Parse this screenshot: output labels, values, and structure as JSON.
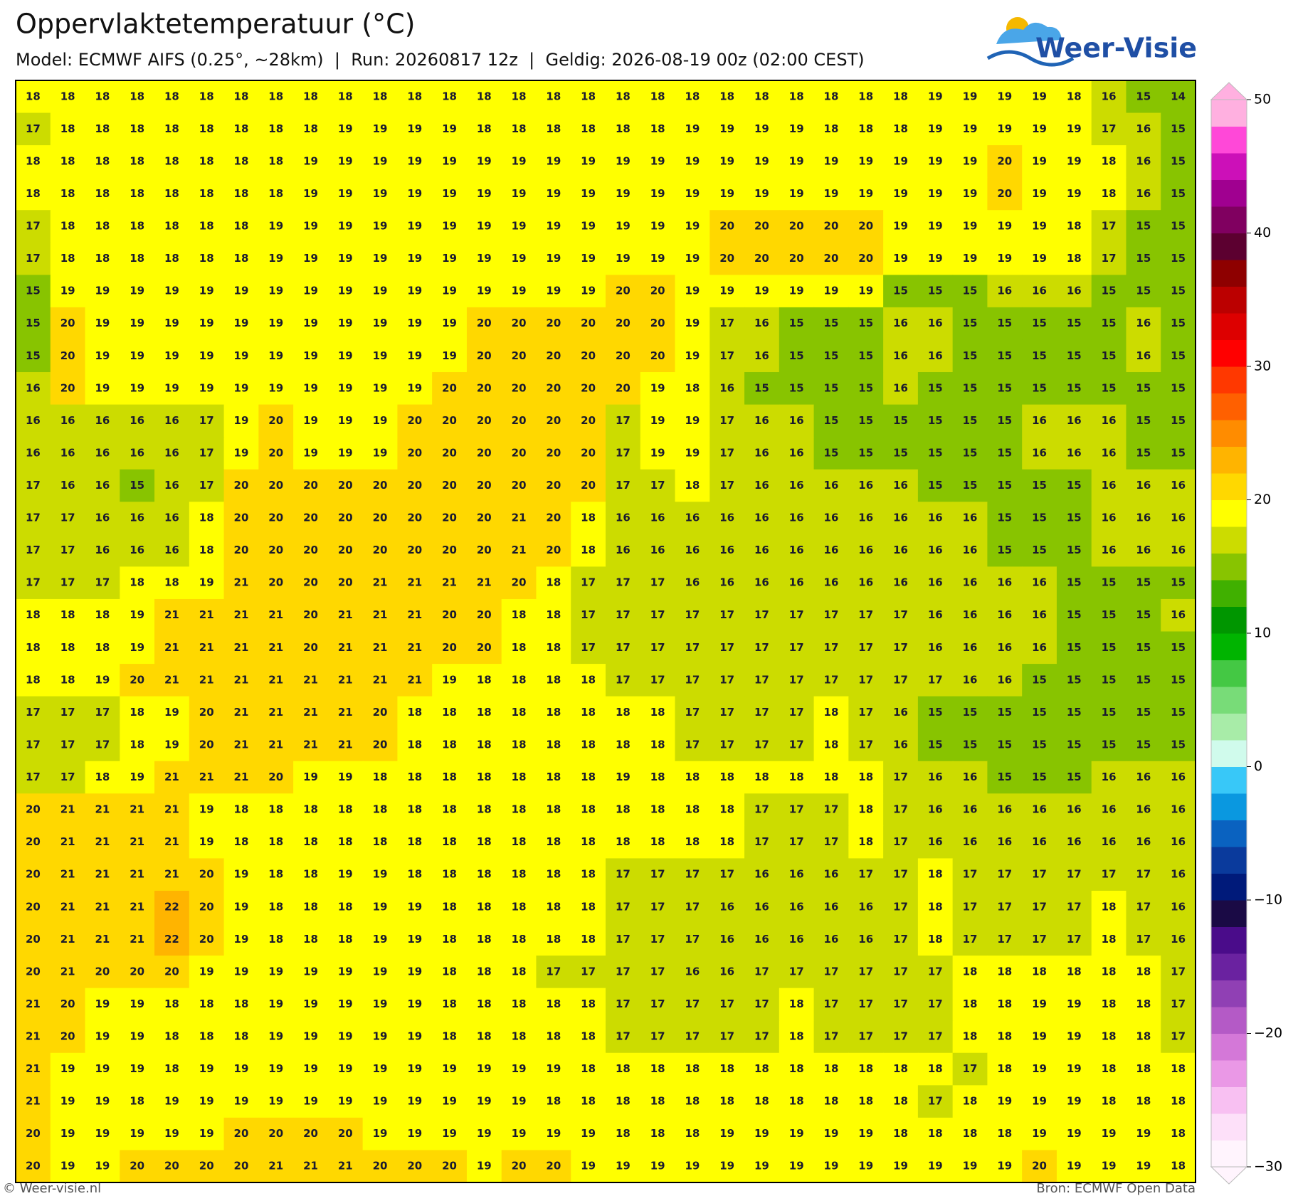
{
  "header": {
    "title": "Oppervlaktetemperatuur (°C)",
    "subtitle": "Model: ECMWF AIFS (0.25°, ~28km)  |  Run: 20260817 12z  |  Geldig: 2026-08-19 00z (02:00 CEST)",
    "logo": "Weer-Visie"
  },
  "map": {
    "values": [
      [
        18,
        18,
        18,
        18,
        18,
        18,
        18,
        18,
        18,
        18,
        18,
        18,
        18,
        18,
        18,
        18,
        18,
        18,
        18,
        18,
        18,
        18,
        18,
        18,
        18,
        18,
        19,
        19,
        19,
        19,
        18,
        16,
        15,
        14
      ],
      [
        17,
        18,
        18,
        18,
        18,
        18,
        18,
        18,
        18,
        19,
        19,
        19,
        19,
        18,
        18,
        18,
        18,
        18,
        18,
        19,
        19,
        19,
        19,
        18,
        18,
        18,
        19,
        19,
        19,
        19,
        19,
        17,
        16,
        15
      ],
      [
        18,
        18,
        18,
        18,
        18,
        18,
        18,
        18,
        19,
        19,
        19,
        19,
        19,
        19,
        19,
        19,
        19,
        19,
        19,
        19,
        19,
        19,
        19,
        19,
        19,
        19,
        19,
        19,
        20,
        19,
        19,
        18,
        16,
        15
      ],
      [
        18,
        18,
        18,
        18,
        18,
        18,
        18,
        18,
        19,
        19,
        19,
        19,
        19,
        19,
        19,
        19,
        19,
        19,
        19,
        19,
        19,
        19,
        19,
        19,
        19,
        19,
        19,
        19,
        20,
        19,
        19,
        18,
        16,
        15
      ],
      [
        17,
        18,
        18,
        18,
        18,
        18,
        18,
        19,
        19,
        19,
        19,
        19,
        19,
        19,
        19,
        19,
        19,
        19,
        19,
        19,
        20,
        20,
        20,
        20,
        20,
        19,
        19,
        19,
        19,
        19,
        18,
        17,
        15,
        15
      ],
      [
        17,
        18,
        18,
        18,
        18,
        18,
        18,
        19,
        19,
        19,
        19,
        19,
        19,
        19,
        19,
        19,
        19,
        19,
        19,
        19,
        20,
        20,
        20,
        20,
        20,
        19,
        19,
        19,
        19,
        19,
        18,
        17,
        15,
        15
      ],
      [
        15,
        19,
        19,
        19,
        19,
        19,
        19,
        19,
        19,
        19,
        19,
        19,
        19,
        19,
        19,
        19,
        19,
        20,
        20,
        19,
        19,
        19,
        19,
        19,
        19,
        15,
        15,
        15,
        16,
        16,
        16,
        15,
        15,
        15
      ],
      [
        15,
        20,
        19,
        19,
        19,
        19,
        19,
        19,
        19,
        19,
        19,
        19,
        19,
        20,
        20,
        20,
        20,
        20,
        20,
        19,
        17,
        16,
        15,
        15,
        15,
        16,
        16,
        15,
        15,
        15,
        15,
        15,
        16,
        15
      ],
      [
        15,
        20,
        19,
        19,
        19,
        19,
        19,
        19,
        19,
        19,
        19,
        19,
        19,
        20,
        20,
        20,
        20,
        20,
        20,
        19,
        17,
        16,
        15,
        15,
        15,
        16,
        16,
        15,
        15,
        15,
        15,
        15,
        16,
        15
      ],
      [
        16,
        20,
        19,
        19,
        19,
        19,
        19,
        19,
        19,
        19,
        19,
        19,
        20,
        20,
        20,
        20,
        20,
        20,
        19,
        18,
        16,
        15,
        15,
        15,
        15,
        16,
        15,
        15,
        15,
        15,
        15,
        15,
        15,
        15
      ],
      [
        16,
        16,
        16,
        16,
        16,
        17,
        19,
        20,
        19,
        19,
        19,
        20,
        20,
        20,
        20,
        20,
        20,
        17,
        19,
        19,
        17,
        16,
        16,
        15,
        15,
        15,
        15,
        15,
        15,
        16,
        16,
        16,
        15,
        15
      ],
      [
        16,
        16,
        16,
        16,
        16,
        17,
        19,
        20,
        19,
        19,
        19,
        20,
        20,
        20,
        20,
        20,
        20,
        17,
        19,
        19,
        17,
        16,
        16,
        15,
        15,
        15,
        15,
        15,
        15,
        16,
        16,
        16,
        15,
        15
      ],
      [
        17,
        16,
        16,
        15,
        16,
        17,
        20,
        20,
        20,
        20,
        20,
        20,
        20,
        20,
        20,
        20,
        20,
        17,
        17,
        18,
        17,
        16,
        16,
        16,
        16,
        16,
        15,
        15,
        15,
        15,
        15,
        16,
        16,
        16
      ],
      [
        17,
        17,
        16,
        16,
        16,
        18,
        20,
        20,
        20,
        20,
        20,
        20,
        20,
        20,
        21,
        20,
        18,
        16,
        16,
        16,
        16,
        16,
        16,
        16,
        16,
        16,
        16,
        16,
        15,
        15,
        15,
        16,
        16,
        16
      ],
      [
        17,
        17,
        16,
        16,
        16,
        18,
        20,
        20,
        20,
        20,
        20,
        20,
        20,
        20,
        21,
        20,
        18,
        16,
        16,
        16,
        16,
        16,
        16,
        16,
        16,
        16,
        16,
        16,
        15,
        15,
        15,
        16,
        16,
        16
      ],
      [
        17,
        17,
        17,
        18,
        18,
        19,
        21,
        20,
        20,
        20,
        21,
        21,
        21,
        21,
        20,
        18,
        17,
        17,
        17,
        16,
        16,
        16,
        16,
        16,
        16,
        16,
        16,
        16,
        16,
        16,
        15,
        15,
        15,
        15
      ],
      [
        18,
        18,
        18,
        19,
        21,
        21,
        21,
        21,
        20,
        21,
        21,
        21,
        20,
        20,
        18,
        18,
        17,
        17,
        17,
        17,
        17,
        17,
        17,
        17,
        17,
        17,
        16,
        16,
        16,
        16,
        15,
        15,
        15,
        16
      ],
      [
        18,
        18,
        18,
        19,
        21,
        21,
        21,
        21,
        20,
        21,
        21,
        21,
        20,
        20,
        18,
        18,
        17,
        17,
        17,
        17,
        17,
        17,
        17,
        17,
        17,
        17,
        16,
        16,
        16,
        16,
        15,
        15,
        15,
        15
      ],
      [
        18,
        18,
        19,
        20,
        21,
        21,
        21,
        21,
        21,
        21,
        21,
        21,
        19,
        18,
        18,
        18,
        18,
        17,
        17,
        17,
        17,
        17,
        17,
        17,
        17,
        17,
        17,
        16,
        16,
        15,
        15,
        15,
        15,
        15
      ],
      [
        17,
        17,
        17,
        18,
        19,
        20,
        21,
        21,
        21,
        21,
        20,
        18,
        18,
        18,
        18,
        18,
        18,
        18,
        18,
        17,
        17,
        17,
        17,
        18,
        17,
        16,
        15,
        15,
        15,
        15,
        15,
        15,
        15,
        15
      ],
      [
        17,
        17,
        17,
        18,
        19,
        20,
        21,
        21,
        21,
        21,
        20,
        18,
        18,
        18,
        18,
        18,
        18,
        18,
        18,
        17,
        17,
        17,
        17,
        18,
        17,
        16,
        15,
        15,
        15,
        15,
        15,
        15,
        15,
        15
      ],
      [
        17,
        17,
        18,
        19,
        21,
        21,
        21,
        20,
        19,
        19,
        18,
        18,
        18,
        18,
        18,
        18,
        18,
        19,
        18,
        18,
        18,
        18,
        18,
        18,
        18,
        17,
        16,
        16,
        15,
        15,
        15,
        16,
        16,
        16
      ],
      [
        20,
        21,
        21,
        21,
        21,
        19,
        18,
        18,
        18,
        18,
        18,
        18,
        18,
        18,
        18,
        18,
        18,
        18,
        18,
        18,
        18,
        17,
        17,
        17,
        18,
        17,
        16,
        16,
        16,
        16,
        16,
        16,
        16,
        16
      ],
      [
        20,
        21,
        21,
        21,
        21,
        19,
        18,
        18,
        18,
        18,
        18,
        18,
        18,
        18,
        18,
        18,
        18,
        18,
        18,
        18,
        18,
        17,
        17,
        17,
        18,
        17,
        16,
        16,
        16,
        16,
        16,
        16,
        16,
        16
      ],
      [
        20,
        21,
        21,
        21,
        21,
        20,
        19,
        18,
        18,
        19,
        19,
        18,
        18,
        18,
        18,
        18,
        18,
        17,
        17,
        17,
        17,
        16,
        16,
        16,
        17,
        17,
        18,
        17,
        17,
        17,
        17,
        17,
        17,
        16
      ],
      [
        20,
        21,
        21,
        21,
        22,
        20,
        19,
        18,
        18,
        18,
        19,
        19,
        18,
        18,
        18,
        18,
        18,
        17,
        17,
        17,
        16,
        16,
        16,
        16,
        16,
        17,
        18,
        17,
        17,
        17,
        17,
        18,
        17,
        16
      ],
      [
        20,
        21,
        21,
        21,
        22,
        20,
        19,
        18,
        18,
        18,
        19,
        19,
        18,
        18,
        18,
        18,
        18,
        17,
        17,
        17,
        16,
        16,
        16,
        16,
        16,
        17,
        18,
        17,
        17,
        17,
        17,
        18,
        17,
        16
      ],
      [
        20,
        21,
        20,
        20,
        20,
        19,
        19,
        19,
        19,
        19,
        19,
        19,
        18,
        18,
        18,
        17,
        17,
        17,
        17,
        16,
        16,
        17,
        17,
        17,
        17,
        17,
        17,
        18,
        18,
        18,
        18,
        18,
        18,
        17
      ],
      [
        21,
        20,
        19,
        19,
        18,
        18,
        18,
        19,
        19,
        19,
        19,
        19,
        18,
        18,
        18,
        18,
        18,
        17,
        17,
        17,
        17,
        17,
        18,
        17,
        17,
        17,
        17,
        18,
        18,
        19,
        19,
        18,
        18,
        17
      ],
      [
        21,
        20,
        19,
        19,
        18,
        18,
        18,
        19,
        19,
        19,
        19,
        19,
        18,
        18,
        18,
        18,
        18,
        17,
        17,
        17,
        17,
        17,
        18,
        17,
        17,
        17,
        17,
        18,
        18,
        19,
        19,
        18,
        18,
        17
      ],
      [
        21,
        19,
        19,
        19,
        18,
        19,
        19,
        19,
        19,
        19,
        19,
        19,
        19,
        19,
        19,
        19,
        18,
        18,
        18,
        18,
        18,
        18,
        18,
        18,
        18,
        18,
        18,
        17,
        18,
        19,
        19,
        18,
        18,
        18
      ],
      [
        21,
        19,
        19,
        18,
        19,
        19,
        19,
        19,
        19,
        19,
        19,
        19,
        19,
        19,
        19,
        18,
        18,
        18,
        18,
        18,
        18,
        18,
        18,
        18,
        18,
        18,
        17,
        18,
        19,
        19,
        19,
        18,
        18,
        18
      ],
      [
        20,
        19,
        19,
        19,
        19,
        19,
        20,
        20,
        20,
        20,
        19,
        19,
        19,
        19,
        19,
        19,
        19,
        18,
        18,
        18,
        19,
        19,
        19,
        19,
        19,
        18,
        18,
        18,
        18,
        19,
        19,
        19,
        19,
        18
      ],
      [
        20,
        19,
        19,
        20,
        20,
        20,
        20,
        21,
        21,
        21,
        20,
        20,
        20,
        19,
        20,
        20,
        19,
        19,
        19,
        19,
        19,
        19,
        19,
        19,
        19,
        19,
        19,
        19,
        19,
        20,
        19,
        19,
        19,
        18
      ]
    ]
  },
  "colorbar": {
    "lim": [
      -30,
      50
    ],
    "ticks": [
      50,
      40,
      30,
      20,
      10,
      0,
      {
        "value": -10,
        "label": "−10"
      },
      {
        "value": -20,
        "label": "−20"
      },
      {
        "value": -30,
        "label": "−30"
      }
    ],
    "colors": [
      "#fff4fd",
      "#fde0f9",
      "#f8c0f2",
      "#ea98e6",
      "#d478d8",
      "#b45ac6",
      "#9040b4",
      "#6a22a0",
      "#4a0c8a",
      "#1a0a45",
      "#001a7a",
      "#0a3a9c",
      "#0a62c0",
      "#0a98e0",
      "#38c8f8",
      "#d0fbec",
      "#a8eca8",
      "#78dc78",
      "#44c844",
      "#00b400",
      "#009600",
      "#40b000",
      "#88c400",
      "#ccdc00",
      "#ffff00",
      "#ffd800",
      "#ffb400",
      "#ff8c00",
      "#ff6000",
      "#ff3800",
      "#ff0000",
      "#dd0000",
      "#bb0000",
      "#8e0000",
      "#5c0030",
      "#800060",
      "#a00090",
      "#cc10b8",
      "#ff48d8",
      "#ffb0e0"
    ]
  },
  "footer": {
    "left": "© Weer-visie.nl",
    "right": "Bron: ECMWF Open Data"
  }
}
